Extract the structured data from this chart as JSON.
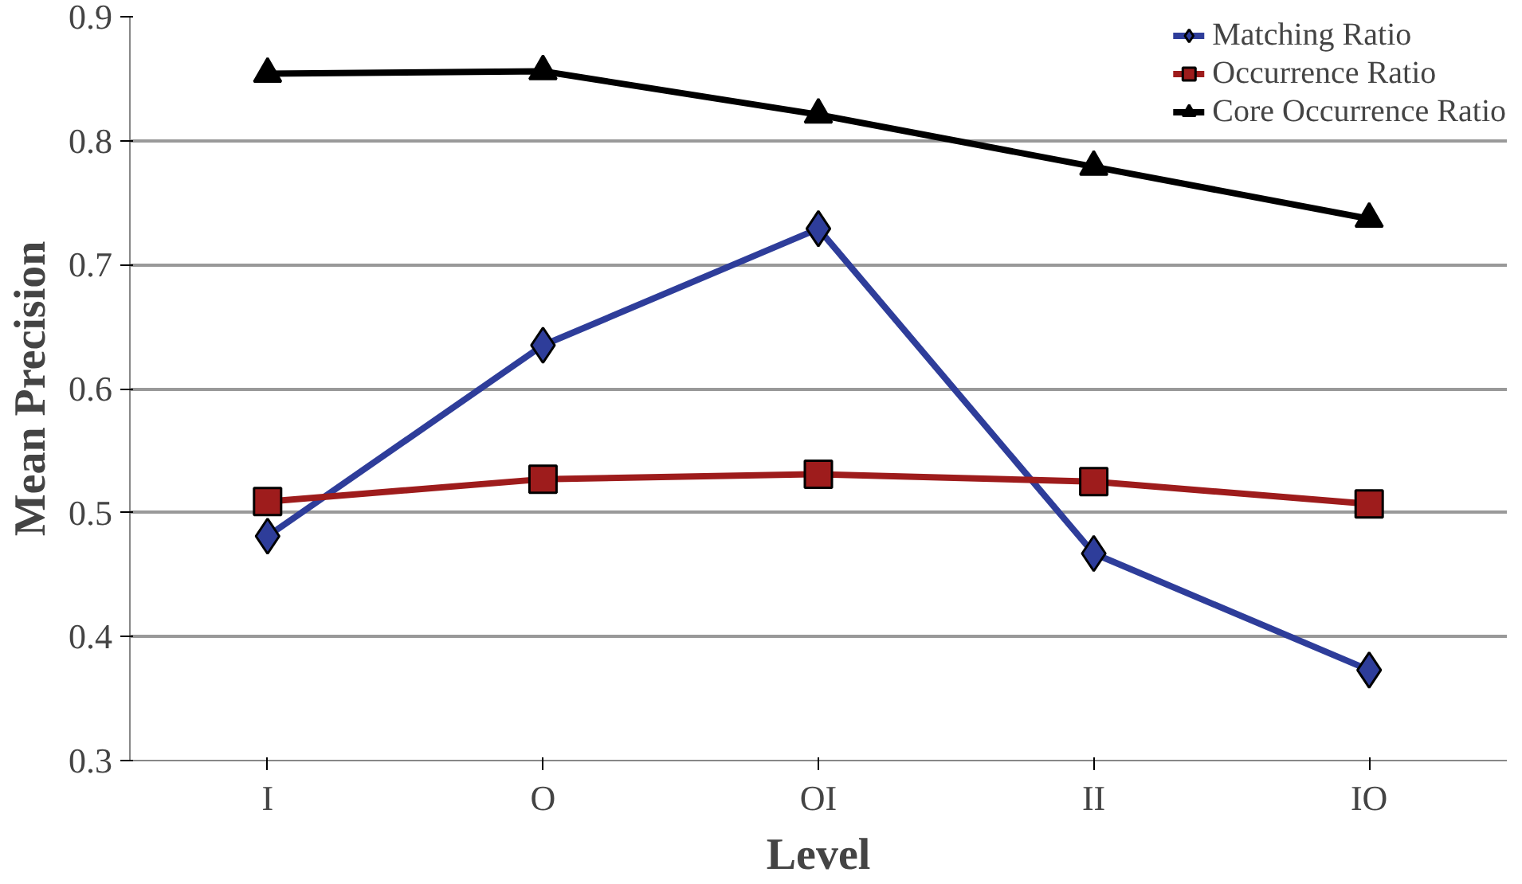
{
  "chart_data": {
    "type": "line",
    "xlabel": "Level",
    "ylabel": "Mean Precision",
    "categories": [
      "I",
      "O",
      "OI",
      "II",
      "IO"
    ],
    "series": [
      {
        "name": "Matching Ratio",
        "color": "#2e3d9a",
        "marker": "diamond",
        "values": [
          0.481,
          0.635,
          0.729,
          0.467,
          0.373
        ]
      },
      {
        "name": "Occurrence Ratio",
        "color": "#9e1c1c",
        "marker": "square",
        "values": [
          0.509,
          0.527,
          0.531,
          0.525,
          0.507
        ]
      },
      {
        "name": "Core Occurrence Ratio",
        "color": "#000000",
        "marker": "triangle",
        "values": [
          0.854,
          0.856,
          0.821,
          0.779,
          0.737
        ]
      }
    ],
    "ylim": [
      0.3,
      0.9
    ],
    "yticks": [
      0.3,
      0.4,
      0.5,
      0.6,
      0.7,
      0.8,
      0.9
    ],
    "grid": "y",
    "legend": "top right"
  }
}
